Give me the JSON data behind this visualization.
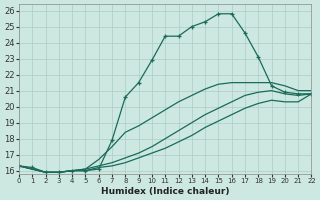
{
  "xlabel": "Humidex (Indice chaleur)",
  "bg_color": "#cce8e0",
  "line_color": "#1a6b5a",
  "grid_color": "#aaccc4",
  "xlim": [
    0,
    22
  ],
  "ylim": [
    15.8,
    26.4
  ],
  "yticks": [
    16,
    17,
    18,
    19,
    20,
    21,
    22,
    23,
    24,
    25,
    26
  ],
  "xticks": [
    0,
    1,
    2,
    3,
    4,
    5,
    6,
    7,
    8,
    9,
    10,
    11,
    12,
    13,
    14,
    15,
    16,
    17,
    18,
    19,
    20,
    21,
    22
  ],
  "lines": [
    {
      "x": [
        0,
        1,
        2,
        3,
        4,
        5,
        6,
        7,
        8,
        9,
        10,
        11,
        12,
        13,
        14,
        15,
        16,
        17,
        18,
        19,
        20,
        21,
        22
      ],
      "y": [
        16.3,
        16.2,
        15.9,
        15.9,
        16.0,
        16.0,
        16.1,
        17.9,
        20.6,
        21.5,
        22.9,
        24.4,
        24.4,
        25.0,
        25.3,
        25.8,
        25.8,
        24.6,
        23.1,
        21.3,
        20.9,
        20.8,
        20.8
      ],
      "has_markers": true
    },
    {
      "x": [
        0,
        2,
        3,
        4,
        5,
        6,
        7,
        8,
        9,
        10,
        11,
        12,
        13,
        14,
        15,
        16,
        17,
        18,
        19,
        20,
        21,
        22
      ],
      "y": [
        16.3,
        15.9,
        15.9,
        16.0,
        16.1,
        16.7,
        17.5,
        18.4,
        18.8,
        19.3,
        19.8,
        20.3,
        20.7,
        21.1,
        21.4,
        21.5,
        21.5,
        21.5,
        21.5,
        21.3,
        21.0,
        21.0
      ],
      "has_markers": false
    },
    {
      "x": [
        0,
        2,
        3,
        4,
        5,
        6,
        7,
        8,
        9,
        10,
        11,
        12,
        13,
        14,
        15,
        16,
        17,
        18,
        19,
        20,
        21,
        22
      ],
      "y": [
        16.3,
        15.9,
        15.9,
        16.0,
        16.1,
        16.3,
        16.5,
        16.8,
        17.1,
        17.5,
        18.0,
        18.5,
        19.0,
        19.5,
        19.9,
        20.3,
        20.7,
        20.9,
        21.0,
        20.8,
        20.7,
        20.8
      ],
      "has_markers": false
    },
    {
      "x": [
        0,
        2,
        3,
        4,
        5,
        6,
        7,
        8,
        9,
        10,
        11,
        12,
        13,
        14,
        15,
        16,
        17,
        18,
        19,
        20,
        21,
        22
      ],
      "y": [
        16.3,
        15.9,
        15.9,
        16.0,
        16.0,
        16.2,
        16.3,
        16.5,
        16.8,
        17.1,
        17.4,
        17.8,
        18.2,
        18.7,
        19.1,
        19.5,
        19.9,
        20.2,
        20.4,
        20.3,
        20.3,
        20.8
      ],
      "has_markers": false
    }
  ]
}
